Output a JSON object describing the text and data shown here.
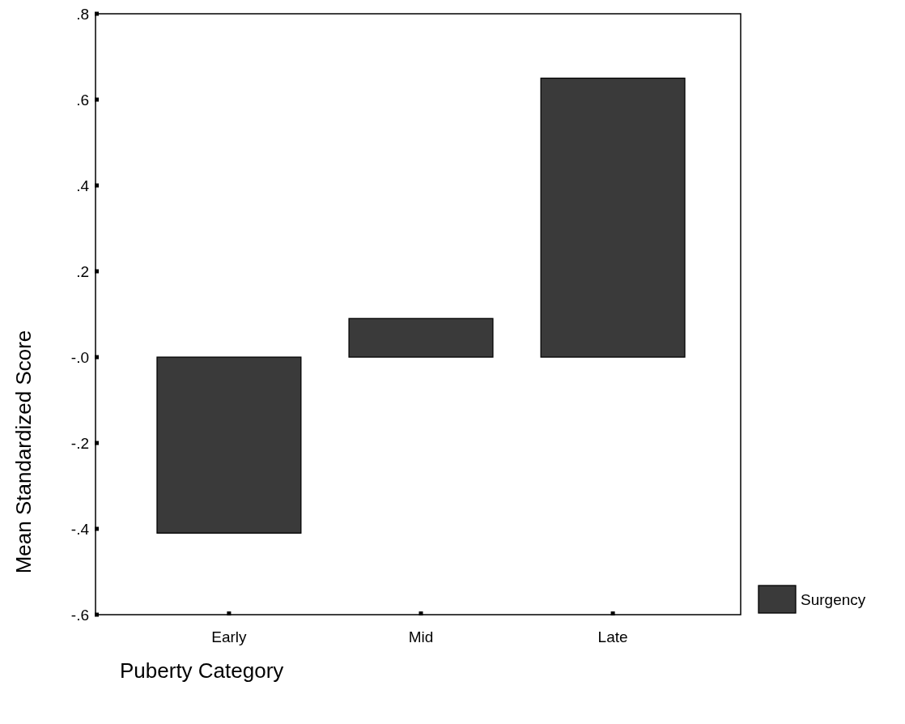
{
  "chart_data": {
    "type": "bar",
    "xlabel": "Puberty Category",
    "ylabel": "Mean Standardized Score",
    "categories": [
      "Early",
      "Mid",
      "Late"
    ],
    "series": [
      {
        "name": "Surgency",
        "color": "#3a3a3a",
        "values": [
          -0.41,
          0.09,
          0.65
        ]
      }
    ],
    "ylim": [
      -0.6,
      0.8
    ],
    "yticks": [
      {
        "value": 0.8,
        "label": ".8"
      },
      {
        "value": 0.6,
        "label": ".6"
      },
      {
        "value": 0.4,
        "label": ".4"
      },
      {
        "value": 0.2,
        "label": ".2"
      },
      {
        "value": 0,
        "label": "-.0"
      },
      {
        "value": -0.2,
        "label": "-.2"
      },
      {
        "value": -0.4,
        "label": "-.4"
      },
      {
        "value": -0.6,
        "label": "-.6"
      }
    ],
    "legend": "bottom right",
    "grid": false
  }
}
